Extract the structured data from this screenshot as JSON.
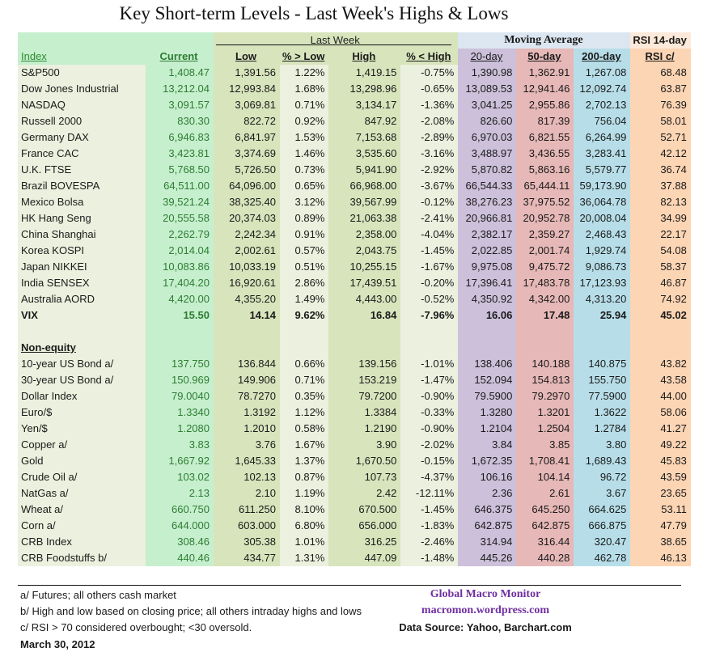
{
  "title": "Key Short-term Levels -  Last Week's Highs & Lows",
  "group_headers": {
    "last_week": "Last Week",
    "moving_average": "Moving Average",
    "rsi": "RSI 14-day"
  },
  "columns": [
    "Index",
    "Current",
    "Low",
    "% > Low",
    "High",
    "% < High",
    "20-day",
    "50-day",
    "200-day",
    "RSI c/"
  ],
  "equity_rows": [
    [
      "S&P500",
      "1,408.47",
      "1,391.56",
      "1.22%",
      "1,419.15",
      "-0.75%",
      "1,390.98",
      "1,362.91",
      "1,267.08",
      "68.48"
    ],
    [
      "Dow Jones Industrial",
      "13,212.04",
      "12,993.84",
      "1.68%",
      "13,298.96",
      "-0.65%",
      "13,089.53",
      "12,941.46",
      "12,092.74",
      "63.87"
    ],
    [
      "NASDAQ",
      "3,091.57",
      "3,069.81",
      "0.71%",
      "3,134.17",
      "-1.36%",
      "3,041.25",
      "2,955.86",
      "2,702.13",
      "76.39"
    ],
    [
      "Russell 2000",
      "830.30",
      "822.72",
      "0.92%",
      "847.92",
      "-2.08%",
      "826.60",
      "817.39",
      "756.04",
      "58.01"
    ],
    [
      "Germany DAX",
      "6,946.83",
      "6,841.97",
      "1.53%",
      "7,153.68",
      "-2.89%",
      "6,970.03",
      "6,821.55",
      "6,264.99",
      "52.71"
    ],
    [
      "France CAC",
      "3,423.81",
      "3,374.69",
      "1.46%",
      "3,535.60",
      "-3.16%",
      "3,488.97",
      "3,436.55",
      "3,283.41",
      "42.12"
    ],
    [
      "U.K. FTSE",
      "5,768.50",
      "5,726.50",
      "0.73%",
      "5,941.90",
      "-2.92%",
      "5,870.82",
      "5,863.16",
      "5,579.77",
      "36.74"
    ],
    [
      "Brazil BOVESPA",
      "64,511.00",
      "64,096.00",
      "0.65%",
      "66,968.00",
      "-3.67%",
      "66,544.33",
      "65,444.11",
      "59,173.90",
      "37.88"
    ],
    [
      "Mexico Bolsa",
      "39,521.24",
      "38,325.40",
      "3.12%",
      "39,567.99",
      "-0.12%",
      "38,276.23",
      "37,975.52",
      "36,064.78",
      "82.13"
    ],
    [
      "HK  Hang Seng",
      "20,555.58",
      "20,374.03",
      "0.89%",
      "21,063.38",
      "-2.41%",
      "20,966.81",
      "20,952.78",
      "20,008.04",
      "34.99"
    ],
    [
      "China Shanghai",
      "2,262.79",
      "2,242.34",
      "0.91%",
      "2,358.00",
      "-4.04%",
      "2,382.17",
      "2,359.27",
      "2,468.43",
      "22.17"
    ],
    [
      "Korea KOSPI",
      "2,014.04",
      "2,002.61",
      "0.57%",
      "2,043.75",
      "-1.45%",
      "2,022.85",
      "2,001.74",
      "1,929.74",
      "54.08"
    ],
    [
      "Japan NIKKEI",
      "10,083.86",
      "10,033.19",
      "0.51%",
      "10,255.15",
      "-1.67%",
      "9,975.08",
      "9,475.72",
      "9,086.73",
      "58.37"
    ],
    [
      "India SENSEX",
      "17,404.20",
      "16,920.61",
      "2.86%",
      "17,439.51",
      "-0.20%",
      "17,396.41",
      "17,483.78",
      "17,123.93",
      "46.87"
    ],
    [
      "Australia AORD",
      "4,420.00",
      "4,355.20",
      "1.49%",
      "4,443.00",
      "-0.52%",
      "4,350.92",
      "4,342.00",
      "4,313.20",
      "74.92"
    ],
    [
      "VIX",
      "15.50",
      "14.14",
      "9.62%",
      "16.84",
      "-7.96%",
      "16.06",
      "17.48",
      "25.94",
      "45.02"
    ]
  ],
  "non_equity_label": "Non-equity",
  "non_equity_rows": [
    [
      "10-year US Bond  a/",
      "137.750",
      "136.844",
      "0.66%",
      "139.156",
      "-1.01%",
      "138.406",
      "140.188",
      "140.875",
      "43.82"
    ],
    [
      "30-year US Bond  a/",
      "150.969",
      "149.906",
      "0.71%",
      "153.219",
      "-1.47%",
      "152.094",
      "154.813",
      "155.750",
      "43.58"
    ],
    [
      "Dollar Index",
      "79.0040",
      "78.7270",
      "0.35%",
      "79.7200",
      "-0.90%",
      "79.5900",
      "79.2970",
      "77.5900",
      "44.00"
    ],
    [
      "Euro/$",
      "1.3340",
      "1.3192",
      "1.12%",
      "1.3384",
      "-0.33%",
      "1.3280",
      "1.3201",
      "1.3622",
      "58.06"
    ],
    [
      "Yen/$",
      "1.2080",
      "1.2010",
      "0.58%",
      "1.2190",
      "-0.90%",
      "1.2104",
      "1.2504",
      "1.2784",
      "41.27"
    ],
    [
      "Copper  a/",
      "3.83",
      "3.76",
      "1.67%",
      "3.90",
      "-2.02%",
      "3.84",
      "3.85",
      "3.80",
      "49.22"
    ],
    [
      "Gold",
      "1,667.92",
      "1,645.33",
      "1.37%",
      "1,670.50",
      "-0.15%",
      "1,672.35",
      "1,708.41",
      "1,689.43",
      "45.83"
    ],
    [
      "Crude Oil  a/",
      "103.02",
      "102.13",
      "0.87%",
      "107.73",
      "-4.37%",
      "106.16",
      "104.14",
      "96.72",
      "43.59"
    ],
    [
      "NatGas  a/",
      "2.13",
      "2.10",
      "1.19%",
      "2.42",
      "-12.11%",
      "2.36",
      "2.61",
      "3.67",
      "23.65"
    ],
    [
      "Wheat  a/",
      "660.750",
      "611.250",
      "8.10%",
      "670.500",
      "-1.45%",
      "646.375",
      "645.250",
      "664.625",
      "53.11"
    ],
    [
      "Corn  a/",
      "644.000",
      "603.000",
      "6.80%",
      "656.000",
      "-1.83%",
      "642.875",
      "642.875",
      "666.875",
      "47.79"
    ],
    [
      "CRB Index",
      "308.46",
      "305.38",
      "1.01%",
      "316.25",
      "-2.46%",
      "314.94",
      "316.44",
      "320.47",
      "38.65"
    ],
    [
      "CRB Foodstuffs  b/",
      "440.46",
      "434.77",
      "1.31%",
      "447.09",
      "-1.48%",
      "445.26",
      "440.28",
      "462.78",
      "46.13"
    ]
  ],
  "footnotes": {
    "a": "a/  Futures; all others cash market",
    "b": "b/  High and low based on closing price;  all others intraday highs and lows",
    "c": "c/  RSI > 70 considered overbought;  <30 oversold.",
    "date": "March 30, 2012"
  },
  "publisher": {
    "name": "Global Macro Monitor",
    "site": "macromon.wordpress.com",
    "source": "Data Source: Yahoo, Barchart.com"
  },
  "colors": {
    "current_text": "#2e7d32",
    "ma20": "#ccc0da",
    "ma50": "#e6b8b7",
    "ma200": "#b7dee8",
    "rsi": "#fcd5b4",
    "publisher": "#7030a0"
  }
}
